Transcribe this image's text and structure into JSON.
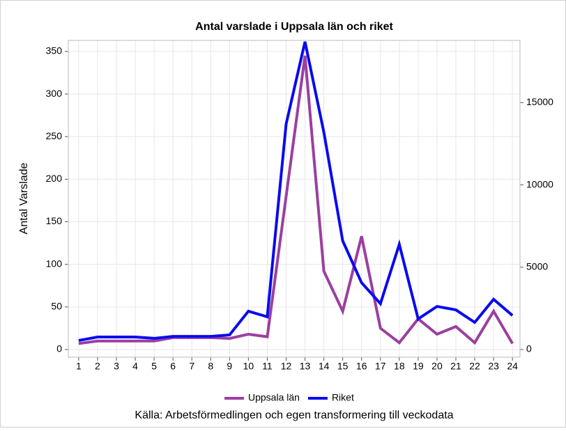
{
  "chart_data": {
    "type": "line",
    "title": "Antal varslade i Uppsala län och riket",
    "ylabel": "Antal Varslade",
    "source": "Källa: Arbetsförmedlingen och egen transformering till veckodata",
    "x": [
      1,
      2,
      3,
      4,
      5,
      6,
      7,
      8,
      9,
      10,
      11,
      12,
      13,
      14,
      15,
      16,
      17,
      18,
      19,
      20,
      21,
      22,
      23,
      24
    ],
    "series": [
      {
        "name": "Uppsala län",
        "color": "#9b3fa0",
        "values": [
          7,
          10,
          10,
          10,
          10,
          14,
          14,
          14,
          13,
          18,
          15,
          180,
          345,
          92,
          45,
          133,
          25,
          8,
          36,
          18,
          27,
          8,
          45,
          7
        ]
      },
      {
        "name": "Riket",
        "color": "#0a0af0",
        "axis": "y2",
        "values": [
          550,
          760,
          760,
          760,
          680,
          800,
          800,
          800,
          890,
          2330,
          1990,
          13700,
          18700,
          13200,
          6600,
          4060,
          2790,
          6390,
          1860,
          2620,
          2410,
          1650,
          3050,
          2070
        ]
      }
    ],
    "xlim": [
      0.45,
      24.4
    ],
    "xticks": [
      1,
      2,
      3,
      4,
      5,
      6,
      7,
      8,
      9,
      10,
      11,
      12,
      13,
      14,
      15,
      16,
      17,
      18,
      19,
      20,
      21,
      22,
      23,
      24
    ],
    "ylim": [
      -9,
      363
    ],
    "yticks": [
      0,
      50,
      100,
      150,
      200,
      250,
      300,
      350
    ],
    "y2lim": [
      -465,
      18780
    ],
    "y2ticks": [
      0,
      5000,
      10000,
      15000
    ],
    "grid": true,
    "legend": "bottom"
  }
}
